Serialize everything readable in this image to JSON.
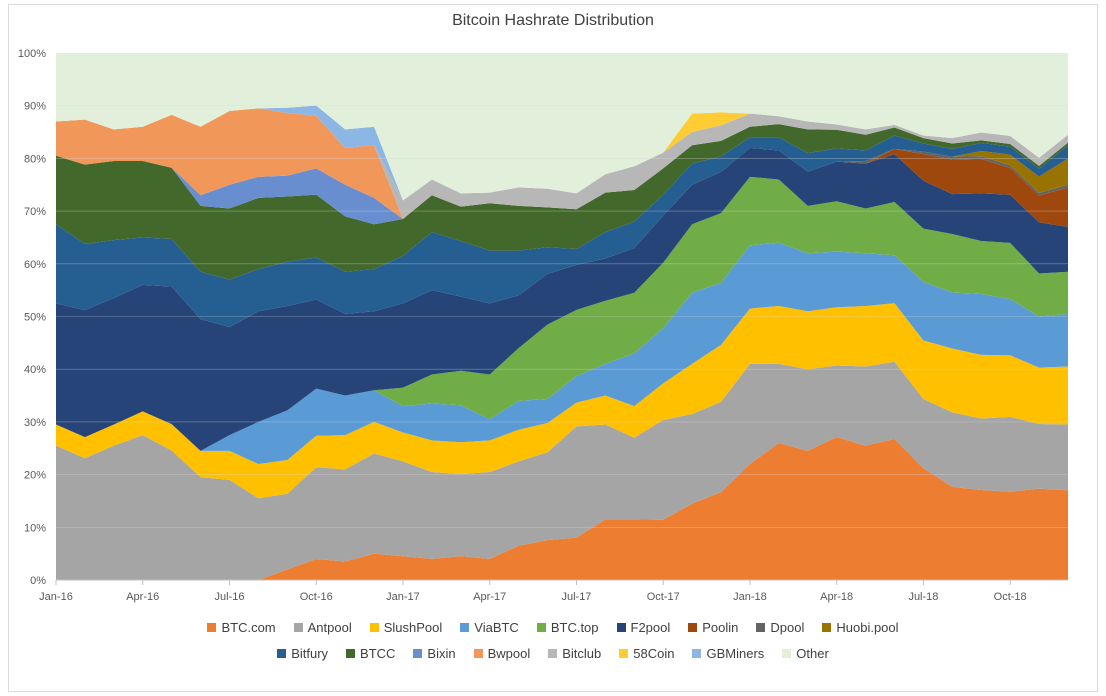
{
  "chart_data": {
    "type": "area",
    "stacked": true,
    "percent": true,
    "title": "Bitcoin Hashrate Distribution",
    "xlabel": "",
    "ylabel": "",
    "ylim": [
      0,
      100
    ],
    "y_ticks": [
      "0%",
      "10%",
      "20%",
      "30%",
      "40%",
      "50%",
      "60%",
      "70%",
      "80%",
      "90%",
      "100%"
    ],
    "x_tick_labels": [
      "Jan-16",
      "Apr-16",
      "Jul-16",
      "Oct-16",
      "Jan-17",
      "Apr-17",
      "Jul-17",
      "Oct-17",
      "Jan-18",
      "Apr-18",
      "Jul-18",
      "Oct-18"
    ],
    "legend_position": "bottom",
    "grid": true,
    "x": [
      "Jan-16",
      "Feb-16",
      "Mar-16",
      "Apr-16",
      "May-16",
      "Jun-16",
      "Jul-16",
      "Aug-16",
      "Sep-16",
      "Oct-16",
      "Nov-16",
      "Dec-16",
      "Jan-17",
      "Feb-17",
      "Mar-17",
      "Apr-17",
      "May-17",
      "Jun-17",
      "Jul-17",
      "Aug-17",
      "Sep-17",
      "Oct-17",
      "Nov-17",
      "Dec-17",
      "Jan-18",
      "Feb-18",
      "Mar-18",
      "Apr-18",
      "May-18",
      "Jun-18",
      "Jul-18",
      "Aug-18",
      "Sep-18",
      "Oct-18",
      "Nov-18",
      "Dec-18"
    ],
    "series": [
      {
        "name": "BTC.com",
        "color": "#ed7d31",
        "values": [
          0,
          0,
          0,
          0,
          0,
          0,
          0,
          0,
          2,
          4,
          3.5,
          5,
          4.5,
          4,
          4.5,
          4,
          6.5,
          7.5,
          8,
          11.5,
          11.5,
          11.5,
          14.5,
          17,
          22,
          26,
          24.5,
          27,
          25.5,
          26.5,
          21,
          17.5,
          17,
          16.5,
          17,
          17
        ]
      },
      {
        "name": "Antpool",
        "color": "#a5a5a5",
        "values": [
          25.5,
          23,
          25.5,
          27.5,
          24.5,
          19.5,
          19,
          15.5,
          14.5,
          17.5,
          17.5,
          19,
          18,
          16.5,
          15.5,
          16.5,
          16,
          16.5,
          21,
          18,
          15.5,
          19,
          17,
          17.5,
          19,
          15,
          15.5,
          13.5,
          15,
          14.5,
          13,
          14,
          13.5,
          14,
          12,
          12.5
        ]
      },
      {
        "name": "SlushPool",
        "color": "#ffc000",
        "values": [
          4,
          4,
          4,
          4.5,
          5,
          5,
          5.5,
          6.5,
          6.5,
          6,
          6.5,
          6,
          5.5,
          6,
          6,
          6,
          6,
          5.5,
          4.5,
          5.5,
          6,
          7,
          9.5,
          11,
          10.5,
          11,
          11,
          11,
          11.5,
          11,
          11,
          12,
          12,
          11.5,
          10.5,
          11
        ]
      },
      {
        "name": "ViaBTC",
        "color": "#5b9bd5",
        "values": [
          0,
          0,
          0,
          0,
          0,
          0,
          3,
          8,
          9.5,
          9,
          7.5,
          6,
          5,
          7,
          7,
          4,
          5.5,
          4.5,
          5,
          6,
          10,
          10.5,
          13.5,
          12,
          12,
          12,
          11,
          10.5,
          10,
          9,
          11,
          10.5,
          11.5,
          10.5,
          9.5,
          10
        ]
      },
      {
        "name": "BTC.top",
        "color": "#70ad47",
        "values": [
          0,
          0,
          0,
          0,
          0,
          0,
          0,
          0,
          0,
          0,
          0,
          0,
          3.5,
          5.5,
          6.5,
          8.5,
          10,
          14,
          12.5,
          12,
          11.5,
          12.5,
          13,
          13.5,
          13,
          12,
          9,
          9.5,
          8.5,
          10,
          10,
          11,
          10,
          10.5,
          8,
          8
        ]
      },
      {
        "name": "F2pool",
        "color": "#264478",
        "values": [
          23,
          24,
          24,
          24,
          26,
          25,
          20.5,
          21,
          20,
          17,
          15.5,
          15,
          16,
          16,
          14,
          13.5,
          10,
          9.5,
          8.5,
          8,
          8.5,
          9,
          7.5,
          8,
          5.5,
          5.5,
          6.5,
          7.5,
          8.5,
          9,
          9,
          7.5,
          9,
          9,
          9.5,
          8.5
        ]
      },
      {
        "name": "Poolin",
        "color": "#9e480e",
        "values": [
          0,
          0,
          0,
          0,
          0,
          0,
          0,
          0,
          0,
          0,
          0,
          0,
          0,
          0,
          0,
          0,
          0,
          0,
          0,
          0,
          0,
          0,
          0,
          0,
          0,
          0,
          0,
          0,
          0,
          1,
          5,
          6.5,
          6.5,
          5,
          5,
          7.5
        ]
      },
      {
        "name": "Dpool",
        "color": "#636363",
        "values": [
          0,
          0,
          0,
          0,
          0,
          0,
          0,
          0,
          0,
          0,
          0,
          0,
          0,
          0,
          0,
          0,
          0,
          0,
          0,
          0,
          0,
          0,
          0,
          0,
          0,
          0,
          0,
          0,
          0.5,
          0,
          0.5,
          0.5,
          0.5,
          0.5,
          0.5,
          0.5
        ]
      },
      {
        "name": "Huobi.pool",
        "color": "#997300",
        "values": [
          0,
          0,
          0,
          0,
          0,
          0,
          0,
          0,
          0,
          0,
          0,
          0,
          0,
          0,
          0,
          0,
          0,
          0,
          0,
          0,
          0,
          0,
          0,
          0,
          0,
          0,
          0,
          0,
          0,
          0,
          0,
          0,
          1,
          2,
          3,
          5
        ]
      },
      {
        "name": "Bitfury",
        "color": "#255e91",
        "values": [
          15,
          12.5,
          11,
          9,
          9,
          9,
          9,
          8,
          8.5,
          8,
          8,
          8,
          9,
          11,
          10.5,
          10,
          8.5,
          5,
          3,
          5,
          5,
          4,
          4,
          3,
          2,
          2.5,
          3.5,
          2.5,
          2,
          2.5,
          1.5,
          1.5,
          1.5,
          1.5,
          1.5,
          2.5
        ]
      },
      {
        "name": "BTCC",
        "color": "#43682b",
        "values": [
          13,
          15,
          15,
          14.5,
          13.5,
          12.5,
          13.5,
          13.5,
          12.5,
          12,
          10.5,
          8.5,
          7,
          7,
          6.5,
          9,
          8.5,
          7.5,
          7.5,
          7.5,
          6,
          5,
          3.5,
          3,
          2,
          2.5,
          4.5,
          3.5,
          3,
          1.5,
          1,
          1,
          0.5,
          0.5,
          0.5,
          0.5
        ]
      },
      {
        "name": "Bixin",
        "color": "#698ed0",
        "values": [
          0,
          0,
          0,
          0,
          0,
          2,
          4.5,
          4,
          4,
          5,
          6,
          5,
          0,
          0,
          0,
          0,
          0,
          0,
          0,
          0,
          0,
          0,
          0,
          0,
          0,
          0,
          0,
          0,
          0,
          0,
          0,
          0,
          0,
          0,
          0,
          0
        ]
      },
      {
        "name": "Bwpool",
        "color": "#f1975a",
        "values": [
          6.5,
          8.5,
          6,
          6.5,
          10,
          13,
          14,
          13,
          12,
          10,
          7,
          10,
          0,
          0,
          0,
          0,
          0,
          0,
          0,
          0,
          0,
          0,
          0,
          0,
          0,
          0,
          0,
          0,
          0,
          0,
          0,
          0,
          0,
          0,
          0,
          0
        ]
      },
      {
        "name": "Bitclub",
        "color": "#b7b7b7",
        "values": [
          0,
          0,
          0,
          0,
          0,
          0,
          0,
          0,
          0,
          0,
          0,
          0,
          3.5,
          3,
          2.5,
          2,
          3.5,
          3.5,
          3,
          3.5,
          4.5,
          3,
          2.5,
          3,
          2.5,
          1.5,
          1.5,
          1,
          1,
          0.5,
          0.5,
          1,
          1.5,
          1.5,
          1.5,
          1.5
        ]
      },
      {
        "name": "58Coin",
        "color": "#ffcd33",
        "values": [
          0,
          0,
          0,
          0,
          0,
          0,
          0,
          0,
          0,
          0,
          0,
          0,
          0,
          0,
          0,
          0,
          0,
          0,
          0,
          0,
          0,
          0,
          3.5,
          2.5,
          0,
          0,
          0,
          0,
          0,
          0,
          0,
          0,
          0,
          0,
          0,
          0
        ]
      },
      {
        "name": "GBMiners",
        "color": "#8cb6e4",
        "values": [
          0,
          0,
          0,
          0,
          0,
          0,
          0,
          0,
          1,
          2,
          3.5,
          3.5,
          0,
          0,
          0,
          0,
          0,
          0,
          0,
          0,
          0,
          0,
          0,
          0,
          0,
          0,
          0,
          0,
          0,
          0,
          0,
          0,
          0,
          0,
          0,
          0
        ]
      },
      {
        "name": "Other",
        "color": "#e2efda",
        "values": [
          13,
          12.6,
          14.5,
          14,
          11.7,
          14,
          11,
          10.5,
          10.5,
          10,
          14.5,
          14,
          28,
          24,
          26.5,
          26.5,
          25.5,
          25.5,
          26.5,
          23,
          21.5,
          19,
          11.5,
          11.5,
          11.5,
          12,
          13,
          13.5,
          14.5,
          13.5,
          15.5,
          16,
          15,
          15.5,
          19.5,
          15.5
        ]
      }
    ]
  }
}
